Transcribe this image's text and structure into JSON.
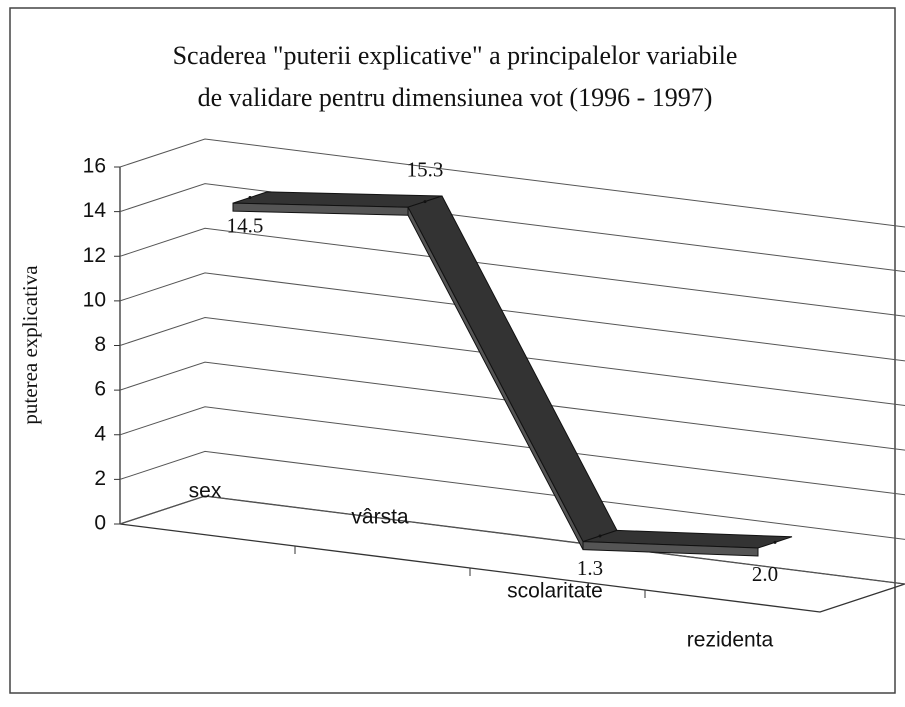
{
  "chart_data": {
    "type": "line3d",
    "title": [
      "Scaderea  \"puterii explicative\" a principalelor variabile",
      "de validare pentru dimensiunea vot (1996 - 1997)"
    ],
    "y_label": "puterea explicativa",
    "categories": [
      "sex",
      "vârsta",
      "scolaritate",
      "rezidenta"
    ],
    "values": [
      14.5,
      15.3,
      1.3,
      2.0
    ],
    "value_labels": [
      "14.5",
      "15.3",
      "1.3",
      "2.0"
    ],
    "color": "#333333",
    "ylim": [
      0,
      16
    ],
    "yticks": [
      0,
      2,
      4,
      6,
      8,
      10,
      12,
      14,
      16
    ],
    "grid": true
  }
}
